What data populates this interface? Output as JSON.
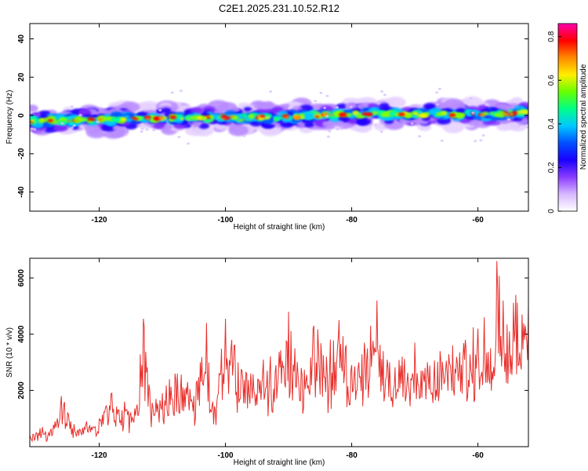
{
  "title": "C2E1.2025.231.10.52.R12",
  "chart_data": [
    {
      "type": "heatmap",
      "xlabel": "Height of straight line (km)",
      "ylabel": "Frequency (Hz)",
      "xlim": [
        -131,
        -52
      ],
      "ylim": [
        -50,
        48
      ],
      "xticks": [
        -120,
        -100,
        -80,
        -60
      ],
      "yticks": [
        -40,
        -20,
        0,
        20,
        40
      ],
      "colorbar": {
        "label": "Normalized spectral amplitude",
        "range": [
          0,
          0.86
        ],
        "ticks": [
          0,
          0.2,
          0.4,
          0.6,
          0.8
        ],
        "colors": [
          "#ffffff",
          "#d8b8ff",
          "#8a3cff",
          "#1a00ff",
          "#0050ff",
          "#00c8ff",
          "#00ff88",
          "#66ff00",
          "#ffee00",
          "#ff8800",
          "#ff0000",
          "#ff00aa"
        ]
      },
      "ridge": {
        "x": [
          -131,
          -120,
          -110,
          -100,
          -90,
          -85,
          -80,
          -75,
          -70,
          -65,
          -60,
          -55,
          -52
        ],
        "y": [
          -3,
          -2,
          -1.5,
          -1,
          -1,
          0,
          0.5,
          1,
          0.5,
          0.5,
          0.5,
          1,
          1.5
        ]
      }
    },
    {
      "type": "line",
      "xlabel": "Height of straight line (km)",
      "ylabel": "SNR (10 * v/v)",
      "xlim": [
        -131,
        -52
      ],
      "ylim": [
        0,
        6700
      ],
      "xticks": [
        -120,
        -100,
        -80,
        -60
      ],
      "yticks": [
        2000,
        4000,
        6000
      ],
      "series": [
        {
          "color": "#e8302c",
          "x": [
            -131,
            -129,
            -128,
            -127,
            -126,
            -125,
            -124,
            -123,
            -122,
            -121,
            -120,
            -119,
            -118,
            -117,
            -116,
            -115,
            -114,
            -113,
            -112,
            -111,
            -110,
            -108,
            -106,
            -105,
            -104,
            -103,
            -102,
            -101,
            -100,
            -99,
            -98,
            -96,
            -94,
            -92,
            -90,
            -89,
            -88,
            -86,
            -84,
            -82,
            -80,
            -78,
            -77,
            -76,
            -75,
            -74,
            -72,
            -70,
            -68,
            -66,
            -64,
            -62,
            -60,
            -59,
            -58,
            -57,
            -56,
            -55,
            -54,
            -53,
            -52
          ],
          "y": [
            400,
            700,
            500,
            900,
            1800,
            1200,
            800,
            600,
            900,
            700,
            1000,
            1400,
            1900,
            1300,
            1600,
            1200,
            1500,
            4550,
            2000,
            1700,
            1900,
            2600,
            2300,
            1800,
            3000,
            4400,
            1600,
            2600,
            4550,
            3800,
            3000,
            2600,
            3100,
            2900,
            4800,
            3500,
            2800,
            4300,
            3200,
            4500,
            2900,
            3700,
            4300,
            5200,
            3400,
            3000,
            3200,
            3700,
            3000,
            3400,
            3600,
            3800,
            4200,
            4600,
            3500,
            6600,
            5200,
            4100,
            5400,
            4700,
            5000
          ]
        }
      ]
    }
  ]
}
